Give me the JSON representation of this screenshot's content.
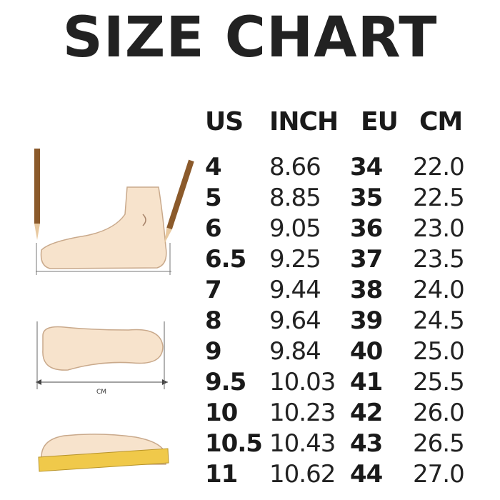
{
  "title": "SIZE CHART",
  "headers": [
    "US",
    "INCH",
    "EU",
    "CM"
  ],
  "rows": [
    [
      "4",
      "8.66",
      "34",
      "22.0"
    ],
    [
      "5",
      "8.85",
      "35",
      "22.5"
    ],
    [
      "6",
      "9.05",
      "36",
      "23.0"
    ],
    [
      "6.5",
      "9.25",
      "37",
      "23.5"
    ],
    [
      "7",
      "9.44",
      "38",
      "24.0"
    ],
    [
      "8",
      "9.64",
      "39",
      "24.5"
    ],
    [
      "9",
      "9.84",
      "40",
      "25.0"
    ],
    [
      "9.5",
      "10.03",
      "41",
      "25.5"
    ],
    [
      "10",
      "10.23",
      "42",
      "26.0"
    ],
    [
      "10.5",
      "10.43",
      "43",
      "26.5"
    ],
    [
      "11",
      "10.62",
      "44",
      "27.0"
    ]
  ],
  "illustration": {
    "cm_label": "CM"
  },
  "colors": {
    "skin": "#f7e3cc",
    "outline": "#a8846a",
    "pencil": "#8b5a2b",
    "ruler": "#f0c94a"
  }
}
